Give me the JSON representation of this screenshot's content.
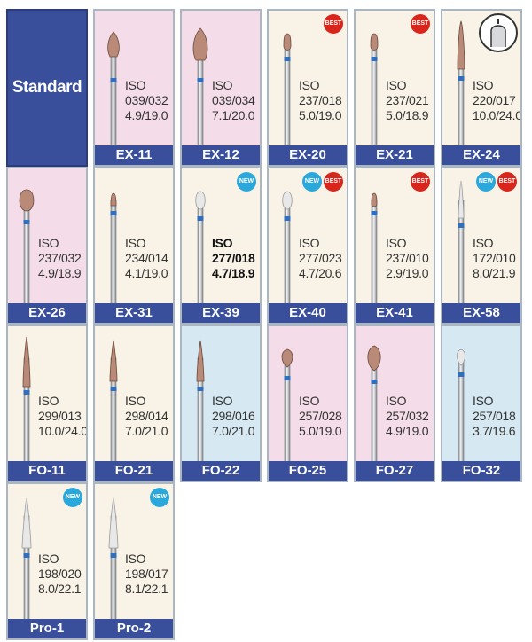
{
  "standard_label": "Standard",
  "colors": {
    "pink": "#f4dde9",
    "cream": "#f8f3e6",
    "blue": "#d6e9f2",
    "code_bar": "#3a4f9c",
    "band": "#2f6fbf"
  },
  "products": [
    {
      "code": "EX-11",
      "iso": "ISO",
      "number": "039/032",
      "dims": "4.9/19.0",
      "bg": "pink",
      "badges": [],
      "shape": "bud"
    },
    {
      "code": "EX-12",
      "iso": "ISO",
      "number": "039/034",
      "dims": "7.1/20.0",
      "bg": "pink",
      "badges": [],
      "shape": "bud-large"
    },
    {
      "code": "EX-20",
      "iso": "ISO",
      "number": "237/018",
      "dims": "5.0/19.0",
      "bg": "cream",
      "badges": [
        "BEST"
      ],
      "shape": "pear"
    },
    {
      "code": "EX-21",
      "iso": "ISO",
      "number": "237/021",
      "dims": "5.0/18.9",
      "bg": "cream",
      "badges": [
        "BEST"
      ],
      "shape": "pear"
    },
    {
      "code": "EX-24",
      "iso": "ISO",
      "number": "220/017",
      "dims": "10.0/24.0",
      "bg": "cream",
      "badges": [],
      "shape": "long",
      "zoom": true
    },
    {
      "code": "EX-26",
      "iso": "ISO",
      "number": "237/032",
      "dims": "4.9/18.9",
      "bg": "pink",
      "badges": [],
      "shape": "pear-large"
    },
    {
      "code": "EX-31",
      "iso": "ISO",
      "number": "234/014",
      "dims": "4.1/19.0",
      "bg": "cream",
      "badges": [],
      "shape": "small"
    },
    {
      "code": "EX-39",
      "iso": "ISO",
      "number": "277/018",
      "dims": "4.7/18.9",
      "bg": "cream",
      "badges": [
        "NEW"
      ],
      "shape": "egg-smooth",
      "bold": true
    },
    {
      "code": "EX-40",
      "iso": "ISO",
      "number": "277/023",
      "dims": "4.7/20.6",
      "bg": "cream",
      "badges": [
        "NEW",
        "BEST"
      ],
      "shape": "egg-smooth"
    },
    {
      "code": "EX-41",
      "iso": "ISO",
      "number": "237/010",
      "dims": "2.9/19.0",
      "bg": "cream",
      "badges": [
        "BEST"
      ],
      "shape": "pear-small"
    },
    {
      "code": "EX-58",
      "iso": "ISO",
      "number": "172/010",
      "dims": "8.0/21.9",
      "bg": "cream",
      "badges": [
        "NEW",
        "BEST"
      ],
      "shape": "taper-smooth"
    },
    {
      "code": "FO-11",
      "iso": "ISO",
      "number": "299/013",
      "dims": "10.0/24.0",
      "bg": "cream",
      "badges": [],
      "shape": "flame-long"
    },
    {
      "code": "FO-21",
      "iso": "ISO",
      "number": "298/014",
      "dims": "7.0/21.0",
      "bg": "cream",
      "badges": [],
      "shape": "flame"
    },
    {
      "code": "FO-22",
      "iso": "ISO",
      "number": "298/016",
      "dims": "7.0/21.0",
      "bg": "blue",
      "badges": [],
      "shape": "flame"
    },
    {
      "code": "FO-25",
      "iso": "ISO",
      "number": "257/028",
      "dims": "5.0/19.0",
      "bg": "pink",
      "badges": [],
      "shape": "football"
    },
    {
      "code": "FO-27",
      "iso": "ISO",
      "number": "257/032",
      "dims": "4.9/19.0",
      "bg": "pink",
      "badges": [],
      "shape": "football-large"
    },
    {
      "code": "FO-32",
      "iso": "ISO",
      "number": "257/018",
      "dims": "3.7/19.6",
      "bg": "blue",
      "badges": [],
      "shape": "football-small"
    },
    {
      "code": "Pro-1",
      "iso": "ISO",
      "number": "198/020",
      "dims": "8.0/22.1",
      "bg": "cream",
      "badges": [
        "NEW"
      ],
      "shape": "taper-wide"
    },
    {
      "code": "Pro-2",
      "iso": "ISO",
      "number": "198/017",
      "dims": "8.1/22.1",
      "bg": "cream",
      "badges": [
        "NEW"
      ],
      "shape": "taper-wide"
    }
  ]
}
